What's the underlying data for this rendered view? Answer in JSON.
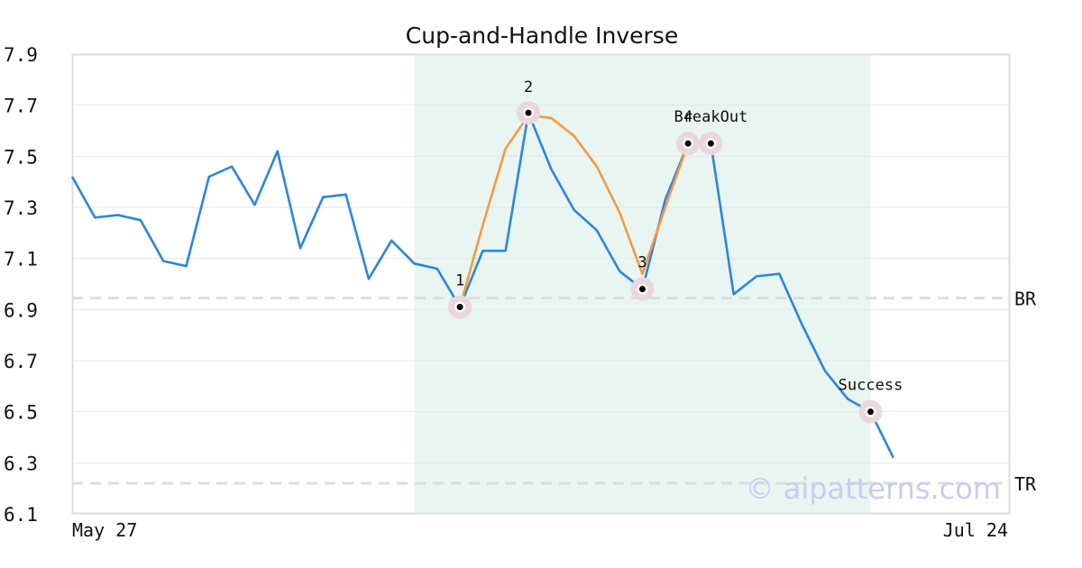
{
  "chart_data": {
    "type": "line",
    "title": "Cup-and-Handle Inverse",
    "x_tick_labels": [
      "May 27",
      "Jul 24"
    ],
    "ylim": [
      6.1,
      7.9
    ],
    "y_ticks": [
      "7.9",
      "7.7",
      "7.5",
      "7.3",
      "7.1",
      "6.9",
      "6.7",
      "6.5",
      "6.3",
      "6.1"
    ],
    "grid": true,
    "colors": {
      "price": "#2b86e0",
      "pattern": "#f59a42",
      "highlight": "#e9f5f0",
      "level": "#dddddd",
      "marker_halo": "#ead7dd",
      "axis": "#dddddd"
    },
    "series": [
      {
        "values": [
          7.42,
          7.26,
          7.27,
          7.25,
          7.09,
          7.07,
          7.42,
          7.46,
          7.31,
          7.52,
          7.14,
          7.34,
          7.35,
          7.02,
          7.17,
          7.08,
          7.06,
          6.91,
          7.13,
          7.13,
          7.67,
          7.45,
          7.29,
          7.21,
          7.05,
          6.98,
          7.33,
          7.55,
          7.55,
          6.96,
          7.03,
          7.04,
          6.84,
          6.66,
          6.55,
          6.5,
          6.32
        ]
      },
      {
        "x_start_index": 17,
        "values": [
          6.91,
          7.23,
          7.53,
          7.66,
          7.65,
          7.58,
          7.46,
          7.28,
          7.04,
          7.3,
          7.55
        ]
      }
    ],
    "highlight_range": [
      15,
      35
    ],
    "levels": [
      {
        "label": "BR",
        "value": 6.945
      },
      {
        "label": "TR",
        "value": 6.22
      }
    ],
    "points": [
      {
        "label": "1",
        "index": 17,
        "value": 6.91
      },
      {
        "label": "2",
        "index": 20,
        "value": 7.67
      },
      {
        "label": "3",
        "index": 25,
        "value": 6.98
      },
      {
        "label": "4",
        "index": 27,
        "value": 7.55
      },
      {
        "label": "BreakOut",
        "index": 28,
        "value": 7.55
      },
      {
        "label": "Success",
        "index": 35,
        "value": 6.5
      }
    ],
    "watermark": "© aipatterns.com"
  }
}
